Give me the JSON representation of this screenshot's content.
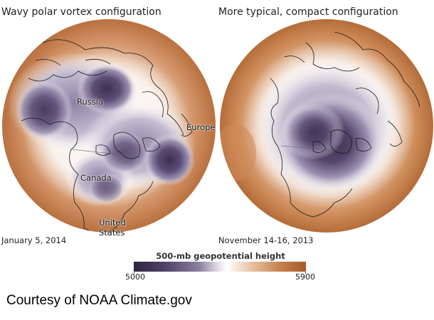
{
  "panels": {
    "left": {
      "title": "Wavy polar vortex configuration",
      "date": "January 5, 2014",
      "labels": {
        "russia": "Russia",
        "europe": "Europe",
        "canada": "Canada",
        "united_states_line1": "United",
        "united_states_line2": "States"
      }
    },
    "right": {
      "title": "More typical, compact configuration",
      "date": "November 14-16, 2013"
    }
  },
  "legend": {
    "title": "500-mb geopotential height (meters)",
    "min": "5000",
    "max": "5900",
    "colors": {
      "low": "#2f2540",
      "mid": "#ffffff",
      "high": "#a45a28"
    }
  },
  "credit": "Courtesy of NOAA Climate.gov"
}
